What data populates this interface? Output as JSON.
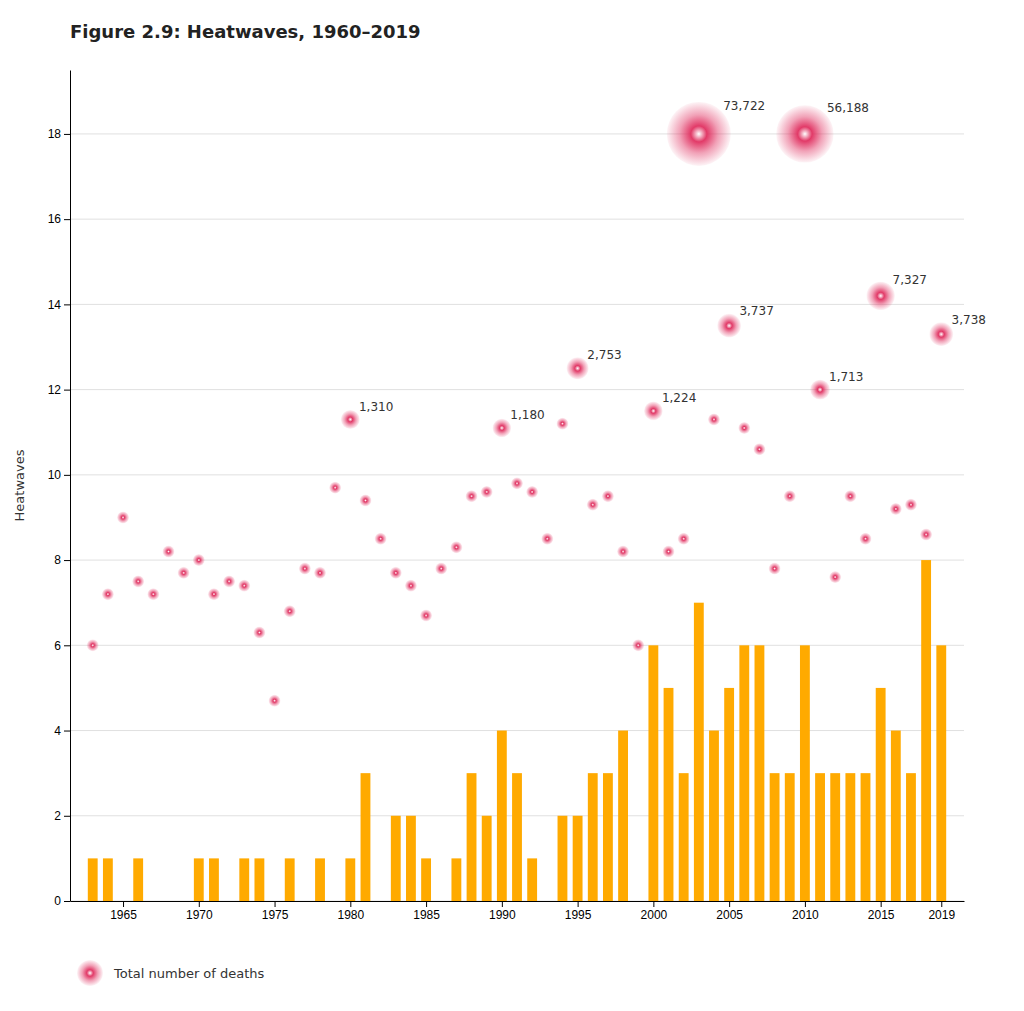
{
  "chart_data": {
    "type": "bar",
    "title": "Figure 2.9: Heatwaves, 1960–2019",
    "ylabel": "Heatwaves",
    "x": [
      1963,
      1964,
      1965,
      1966,
      1967,
      1968,
      1969,
      1970,
      1971,
      1972,
      1973,
      1974,
      1975,
      1976,
      1977,
      1978,
      1979,
      1980,
      1981,
      1982,
      1983,
      1984,
      1985,
      1986,
      1987,
      1988,
      1989,
      1990,
      1991,
      1992,
      1993,
      1994,
      1995,
      1996,
      1997,
      1998,
      1999,
      2000,
      2001,
      2002,
      2003,
      2004,
      2005,
      2006,
      2007,
      2008,
      2009,
      2010,
      2011,
      2012,
      2013,
      2014,
      2015,
      2016,
      2017,
      2018,
      2019
    ],
    "xlim": [
      1961.5,
      2020.5
    ],
    "xticks": [
      1965,
      1970,
      1975,
      1980,
      1985,
      1990,
      1995,
      2000,
      2005,
      2010,
      2015,
      2019
    ],
    "ylim": [
      0,
      19.5
    ],
    "yticks": [
      0,
      2,
      4,
      6,
      8,
      10,
      12,
      14,
      16,
      18
    ],
    "grid": true,
    "legend": "bottom",
    "series": [
      {
        "type": "bar",
        "color": "#ffaa00",
        "values": [
          1,
          1,
          0,
          1,
          0,
          0,
          0,
          1,
          1,
          0,
          1,
          1,
          0,
          1,
          0,
          1,
          0,
          1,
          3,
          0,
          2,
          2,
          1,
          0,
          1,
          3,
          2,
          4,
          3,
          1,
          0,
          2,
          2,
          3,
          3,
          4,
          0,
          6,
          5,
          3,
          7,
          4,
          5,
          6,
          6,
          3,
          3,
          6,
          3,
          3,
          3,
          3,
          5,
          4,
          3,
          8,
          6
        ]
      },
      {
        "name": "Total number of deaths",
        "type": "scatter",
        "color": "#e03060",
        "values": [
          6.0,
          7.2,
          9.0,
          7.5,
          7.2,
          8.2,
          7.7,
          8.0,
          7.2,
          7.5,
          7.4,
          6.3,
          4.7,
          6.8,
          7.8,
          7.7,
          9.7,
          11.3,
          9.4,
          8.5,
          7.7,
          7.4,
          6.7,
          7.8,
          8.3,
          9.5,
          9.6,
          11.1,
          9.8,
          9.6,
          8.5,
          11.2,
          12.5,
          9.3,
          9.5,
          8.2,
          6.0,
          11.5,
          8.2,
          8.5,
          18.0,
          11.3,
          13.5,
          11.1,
          10.6,
          7.8,
          9.5,
          18.0,
          12.0,
          7.6,
          9.5,
          8.5,
          14.2,
          9.2,
          9.3,
          8.6,
          13.3
        ],
        "deaths": [
          0,
          0,
          0,
          0,
          0,
          0,
          0,
          0,
          0,
          0,
          0,
          0,
          0,
          0,
          0,
          0,
          0,
          1310,
          0,
          0,
          0,
          0,
          0,
          0,
          0,
          0,
          0,
          1180,
          0,
          0,
          0,
          0,
          2753,
          0,
          0,
          0,
          0,
          1224,
          0,
          0,
          73722,
          0,
          3737,
          0,
          0,
          0,
          0,
          56188,
          1713,
          0,
          0,
          0,
          7327,
          0,
          0,
          0,
          3738
        ],
        "deaths_labels": [
          null,
          null,
          null,
          null,
          null,
          null,
          null,
          null,
          null,
          null,
          null,
          null,
          null,
          null,
          null,
          null,
          null,
          "1,310",
          null,
          null,
          null,
          null,
          null,
          null,
          null,
          null,
          null,
          "1,180",
          null,
          null,
          null,
          null,
          "2,753",
          null,
          null,
          null,
          null,
          "1,224",
          null,
          null,
          "73,722",
          null,
          "3,737",
          null,
          null,
          null,
          null,
          "56,188",
          "1,713",
          null,
          null,
          null,
          "7,327",
          null,
          null,
          null,
          "3,738"
        ]
      }
    ]
  }
}
